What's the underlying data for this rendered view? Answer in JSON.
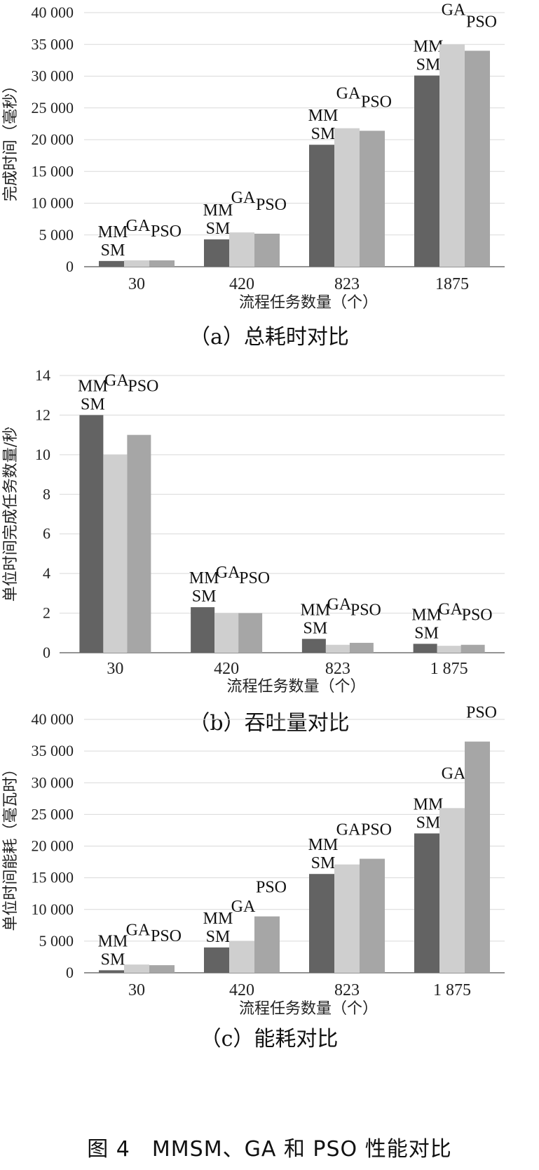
{
  "figure_title": "图 4　MMSM、GA 和 PSO 性能对比",
  "colors": {
    "MMSM": "#636363",
    "GA": "#cfcfcf",
    "PSO": "#a6a6a6",
    "grid": "#d9d9d9",
    "axis": "#555555"
  },
  "chart_data": [
    {
      "type": "bar",
      "caption": "（a）总耗时对比",
      "xlabel": "流程任务数量（个）",
      "ylabel": "完成时间（毫秒）",
      "categories": [
        "30",
        "420",
        "823",
        "1875"
      ],
      "series": [
        {
          "name": "MMSM",
          "values": [
            900,
            4300,
            19200,
            30100
          ]
        },
        {
          "name": "GA",
          "values": [
            1000,
            5400,
            21800,
            35000
          ]
        },
        {
          "name": "PSO",
          "values": [
            1000,
            5200,
            21400,
            34000
          ]
        }
      ],
      "ylim": [
        0,
        40000
      ],
      "yticks": [
        0,
        5000,
        10000,
        15000,
        20000,
        25000,
        30000,
        35000,
        40000
      ],
      "ytick_labels": [
        "0",
        "5 000",
        "10 000",
        "15 000",
        "20 000",
        "25 000",
        "30 000",
        "35 000",
        "40 000"
      ],
      "grid": true
    },
    {
      "type": "bar",
      "caption": "（b）吞吐量对比",
      "xlabel": "流程任务数量（个）",
      "ylabel": "单位时间完成任务数量/秒",
      "categories": [
        "30",
        "420",
        "823",
        "1 875"
      ],
      "series": [
        {
          "name": "MMSM",
          "values": [
            12,
            2.3,
            0.7,
            0.45
          ]
        },
        {
          "name": "GA",
          "values": [
            10,
            2.0,
            0.4,
            0.35
          ]
        },
        {
          "name": "PSO",
          "values": [
            11,
            2.0,
            0.5,
            0.4
          ]
        }
      ],
      "ylim": [
        0,
        14
      ],
      "yticks": [
        0,
        2,
        4,
        6,
        8,
        10,
        12,
        14
      ],
      "ytick_labels": [
        "0",
        "2",
        "4",
        "6",
        "8",
        "10",
        "12",
        "14"
      ],
      "grid": true
    },
    {
      "type": "bar",
      "caption": "（c）能耗对比",
      "xlabel": "流程任务数量（个）",
      "ylabel": "单位时间能耗（毫瓦时）",
      "categories": [
        "30",
        "420",
        "823",
        "1 875"
      ],
      "series": [
        {
          "name": "MMSM",
          "values": [
            400,
            4000,
            15600,
            22000
          ]
        },
        {
          "name": "GA",
          "values": [
            1300,
            5000,
            17100,
            26000
          ]
        },
        {
          "name": "PSO",
          "values": [
            1200,
            8900,
            18000,
            36500
          ]
        }
      ],
      "ylim": [
        0,
        40000
      ],
      "yticks": [
        0,
        5000,
        10000,
        15000,
        20000,
        25000,
        30000,
        35000,
        40000
      ],
      "ytick_labels": [
        "0",
        "5 000",
        "10 000",
        "15 000",
        "20 000",
        "25 000",
        "30 000",
        "35 000",
        "40 000"
      ],
      "grid": true
    }
  ]
}
